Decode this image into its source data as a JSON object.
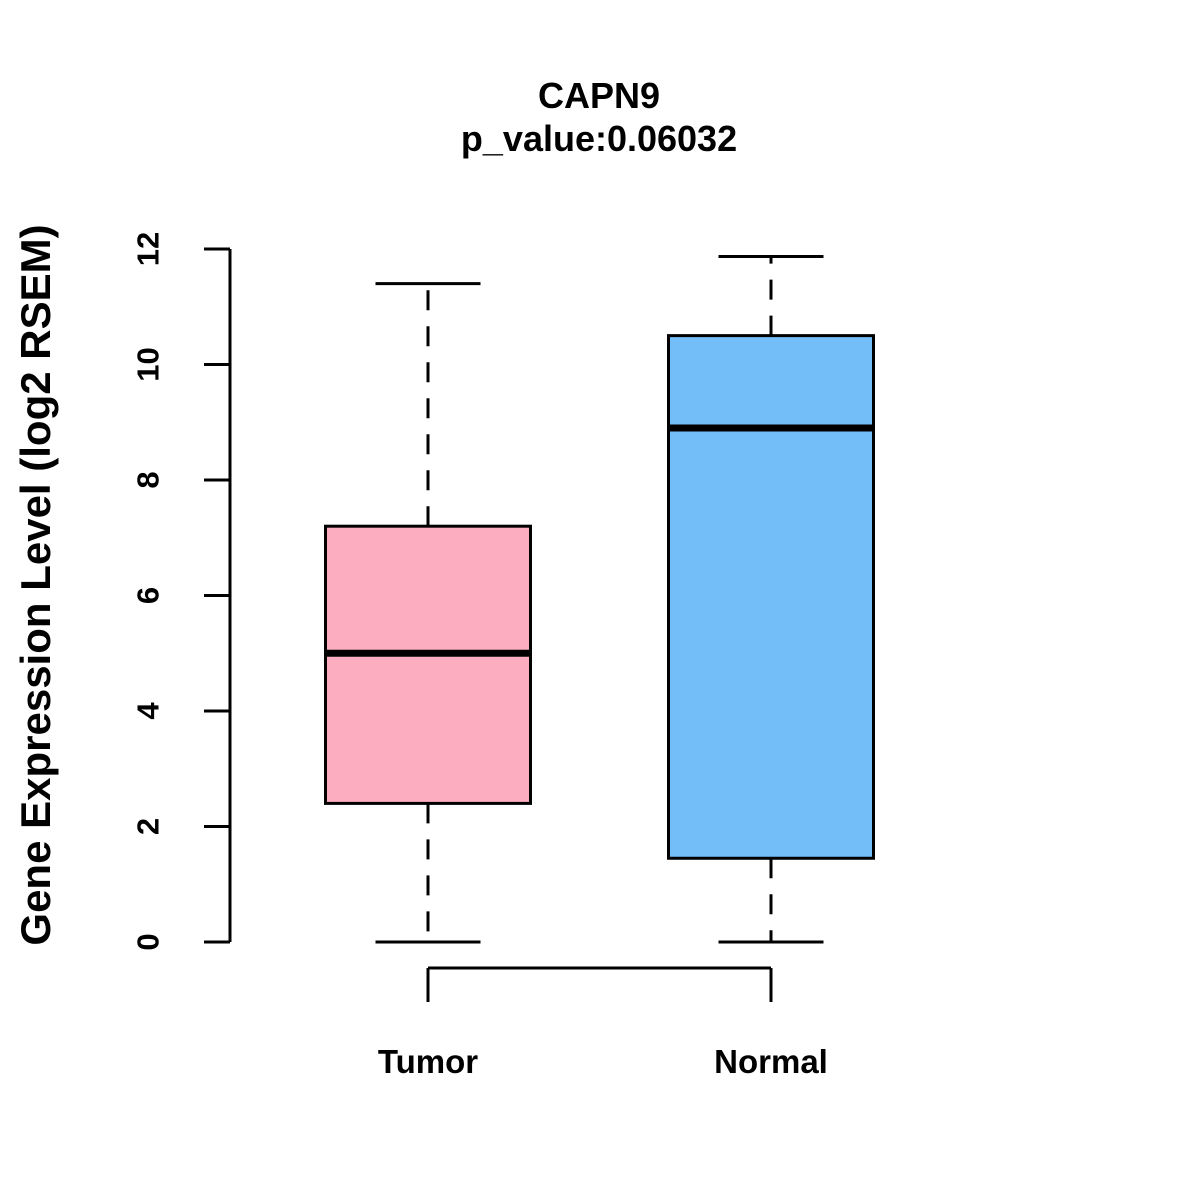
{
  "title": {
    "line1": "CAPN9",
    "line2": "p_value:0.06032"
  },
  "y_axis": {
    "label": "Gene Expression Level (log2 RSEM)"
  },
  "chart_data": {
    "type": "boxplot",
    "title": "CAPN9",
    "subtitle": "p_value:0.06032",
    "ylabel": "Gene Expression Level (log2 RSEM)",
    "ylim": [
      0,
      12
    ],
    "yticks": [
      0,
      2,
      4,
      6,
      8,
      10,
      12
    ],
    "grid": false,
    "legend": "none",
    "categories": [
      "Tumor",
      "Normal"
    ],
    "series": [
      {
        "name": "Tumor",
        "fill": "#FCAEC0",
        "stroke": "#000000",
        "whisker_low": 0,
        "q1": 2.4,
        "median": 5.0,
        "q3": 7.2,
        "whisker_high": 11.4
      },
      {
        "name": "Normal",
        "fill": "#73BEF8",
        "stroke": "#000000",
        "whisker_low": 0,
        "q1": 1.45,
        "median": 8.9,
        "q3": 10.5,
        "whisker_high": 11.87
      }
    ]
  }
}
